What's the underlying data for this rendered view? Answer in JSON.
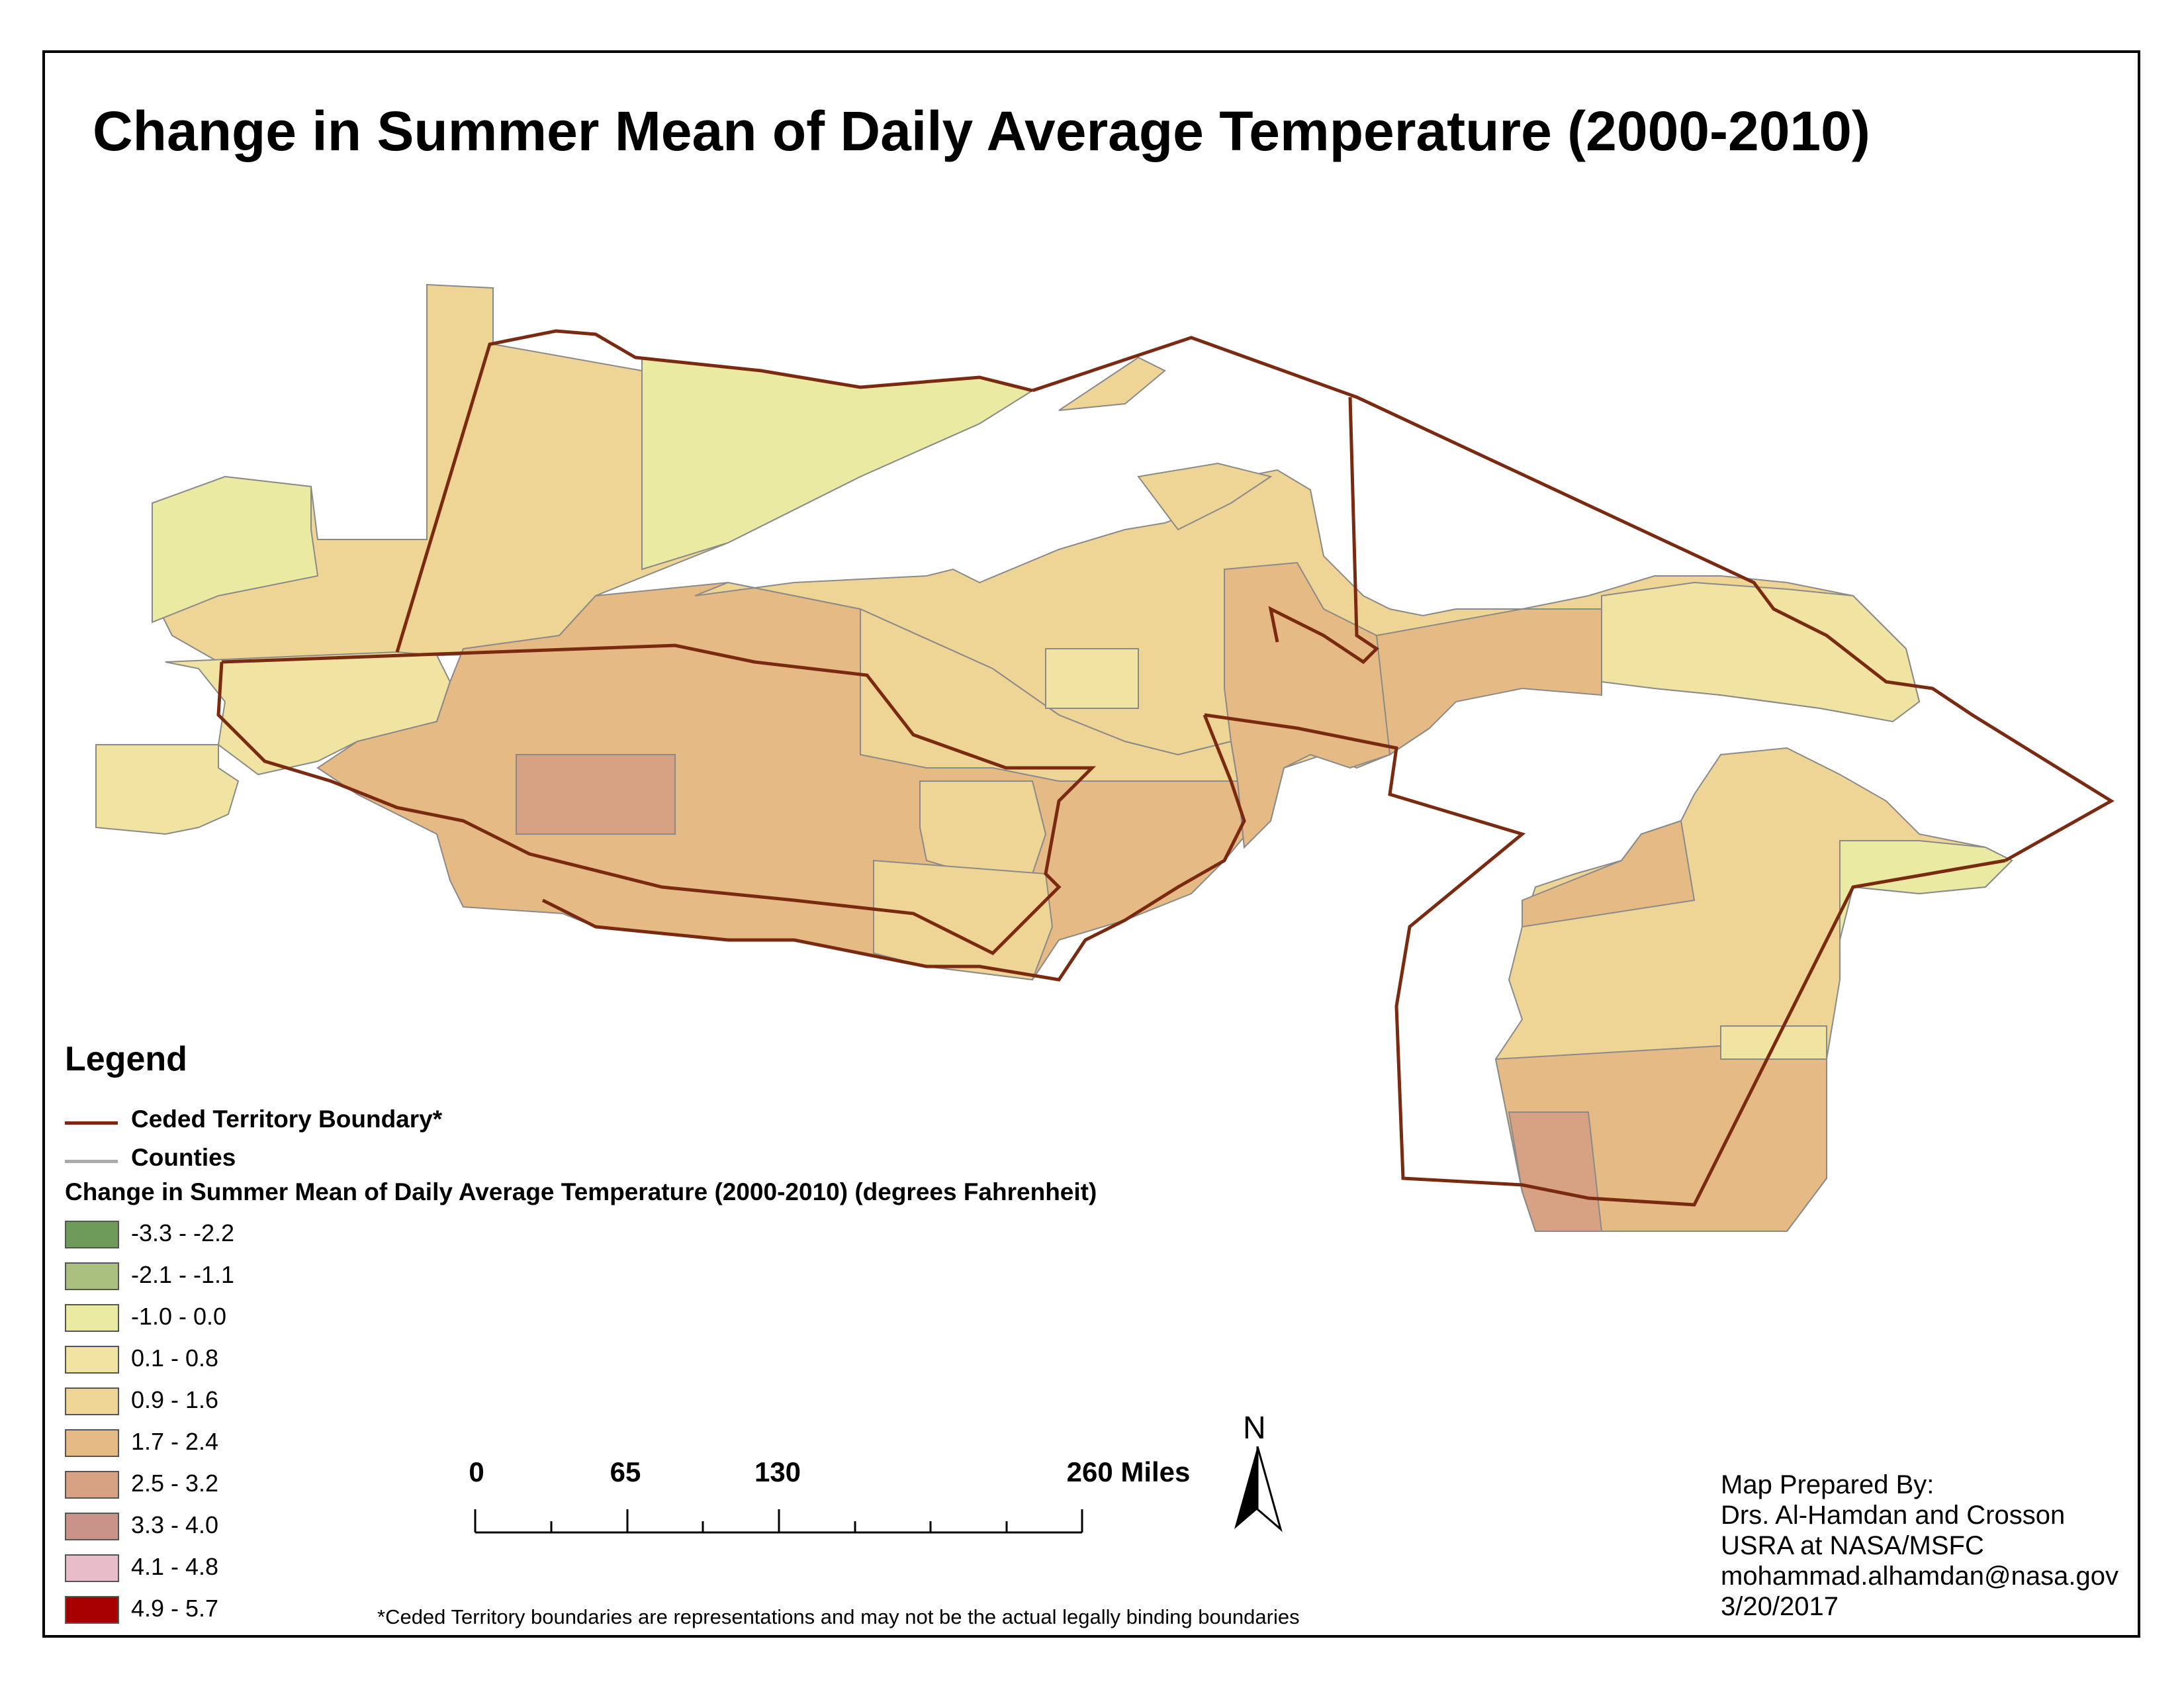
{
  "map": {
    "title": "Change in Summer Mean of Daily Average Temperature (2000-2010)",
    "legend": {
      "heading": "Legend",
      "lines": [
        {
          "label": "Ceded Territory Boundary*",
          "color": "#7a2a10"
        },
        {
          "label": "Counties",
          "color": "#aaaaaa"
        }
      ],
      "field_title": "Change in Summer Mean of Daily Average Temperature (2000-2010) (degrees Fahrenheit)",
      "classes": [
        {
          "label": "-3.3 - -2.2",
          "color": "#6e9a5a"
        },
        {
          "label": "-2.1 - -1.1",
          "color": "#a9c07e"
        },
        {
          "label": "-1.0 - 0.0",
          "color": "#eaeaa3"
        },
        {
          "label": "0.1 - 0.8",
          "color": "#f1e3a1"
        },
        {
          "label": "0.9 - 1.6",
          "color": "#efd595"
        },
        {
          "label": "1.7 - 2.4",
          "color": "#e6ba85"
        },
        {
          "label": "2.5 - 3.2",
          "color": "#d6a283"
        },
        {
          "label": "3.3 - 4.0",
          "color": "#c89389"
        },
        {
          "label": "4.1 - 4.8",
          "color": "#e8bcc8"
        },
        {
          "label": "4.9 - 5.7",
          "color": "#a80000"
        }
      ]
    },
    "scale_bar": {
      "ticks": [
        "0",
        "65",
        "130",
        "260 Miles"
      ]
    },
    "north_arrow": {
      "label": "N"
    },
    "footnote": "*Ceded Territory boundaries are representations and may not be the actual legally binding boundaries",
    "credits": [
      "Map Prepared By:",
      "Drs. Al-Hamdan and Crosson",
      "USRA at NASA/MSFC",
      "mohammad.alhamdan@nasa.gov",
      "3/20/2017"
    ],
    "colors": {
      "boundary": "#7a2a10",
      "county_line": "#8a8a8a"
    }
  }
}
